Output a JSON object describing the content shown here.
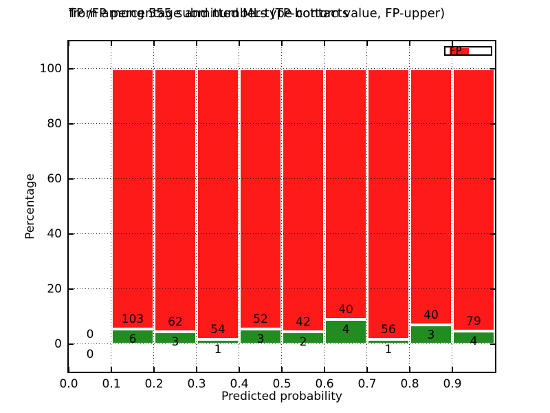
{
  "figure": {
    "title_line1": "TP /FP percentage and numbers (TP-bottom value, FP-upper)",
    "title_line2": "from among 555 submitted ML-type contacts"
  },
  "chart_data": {
    "type": "bar",
    "stacked": true,
    "normalized_to_percent": true,
    "title": "TP /FP percentage and numbers (TP-bottom value, FP-upper) from among 555 submitted ML-type contacts",
    "xlabel": "Predicted probability",
    "ylabel": "Percentage",
    "xlim": [
      0.0,
      1.0
    ],
    "ylim": [
      -10,
      110
    ],
    "x_ticks": [
      "0.0",
      "0.1",
      "0.2",
      "0.3",
      "0.4",
      "0.5",
      "0.6",
      "0.7",
      "0.8",
      "0.9"
    ],
    "y_ticks": [
      "0",
      "20",
      "40",
      "60",
      "80",
      "100"
    ],
    "grid": "dotted",
    "legend_position": "upper right",
    "total_contacts": 555,
    "series": [
      {
        "name": "TP",
        "color": "#228b22",
        "values": [
          0,
          6,
          3,
          1,
          3,
          2,
          4,
          1,
          3,
          4
        ]
      },
      {
        "name": "FP",
        "color": "#ff1a1a",
        "values": [
          0,
          103,
          62,
          54,
          52,
          42,
          40,
          56,
          40,
          79
        ]
      }
    ],
    "bins": [
      {
        "range": [
          0.0,
          0.1
        ],
        "tp": 0,
        "fp": 0
      },
      {
        "range": [
          0.1,
          0.2
        ],
        "tp": 6,
        "fp": 103
      },
      {
        "range": [
          0.2,
          0.3
        ],
        "tp": 3,
        "fp": 62
      },
      {
        "range": [
          0.3,
          0.4
        ],
        "tp": 1,
        "fp": 54
      },
      {
        "range": [
          0.4,
          0.5
        ],
        "tp": 3,
        "fp": 52
      },
      {
        "range": [
          0.5,
          0.6
        ],
        "tp": 2,
        "fp": 42
      },
      {
        "range": [
          0.6,
          0.7
        ],
        "tp": 4,
        "fp": 40
      },
      {
        "range": [
          0.7,
          0.8
        ],
        "tp": 1,
        "fp": 56
      },
      {
        "range": [
          0.8,
          0.9
        ],
        "tp": 3,
        "fp": 40
      },
      {
        "range": [
          0.9,
          1.0
        ],
        "tp": 4,
        "fp": 79
      }
    ]
  }
}
